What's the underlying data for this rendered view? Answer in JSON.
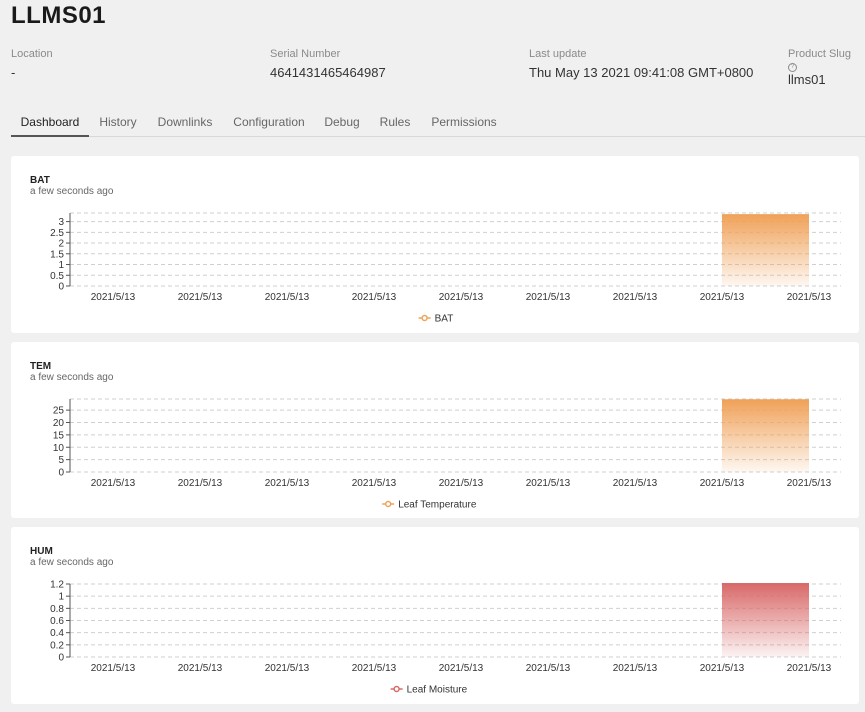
{
  "device": {
    "title": "LLMS01",
    "location_label": "Location",
    "location_value": "-",
    "serial_label": "Serial Number",
    "serial_value": "4641431465464987",
    "update_label": "Last update",
    "update_value": "Thu May 13 2021 09:41:08 GMT+0800",
    "slug_label": "Product Slug",
    "slug_help_icon": "?",
    "slug_value": "llms01"
  },
  "tabs": [
    {
      "label": "Dashboard",
      "active": true
    },
    {
      "label": "History",
      "active": false
    },
    {
      "label": "Downlinks",
      "active": false
    },
    {
      "label": "Configuration",
      "active": false
    },
    {
      "label": "Debug",
      "active": false
    },
    {
      "label": "Rules",
      "active": false
    },
    {
      "label": "Permissions",
      "active": false
    }
  ],
  "colors": {
    "orange": "#f0a25a",
    "red": "#d96a6a"
  },
  "chart_data": [
    {
      "type": "area",
      "title": "BAT",
      "subtitle": "a few seconds ago",
      "categories": [
        "2021/5/13",
        "2021/5/13",
        "2021/5/13",
        "2021/5/13",
        "2021/5/13",
        "2021/5/13",
        "2021/5/13",
        "2021/5/13",
        "2021/5/13"
      ],
      "series": [
        {
          "name": "BAT",
          "values": [
            null,
            null,
            null,
            null,
            null,
            null,
            null,
            3.3,
            3.3
          ],
          "color": "#f0a25a"
        }
      ],
      "yticks": [
        "0",
        "0.5",
        "1",
        "1.5",
        "2",
        "2.5",
        "3"
      ],
      "ylim": [
        0,
        3.4
      ],
      "grid": true,
      "legend": "bottom-center"
    },
    {
      "type": "area",
      "title": "TEM",
      "subtitle": "a few seconds ago",
      "categories": [
        "2021/5/13",
        "2021/5/13",
        "2021/5/13",
        "2021/5/13",
        "2021/5/13",
        "2021/5/13",
        "2021/5/13",
        "2021/5/13",
        "2021/5/13"
      ],
      "series": [
        {
          "name": "Leaf Temperature",
          "values": [
            null,
            null,
            null,
            null,
            null,
            null,
            null,
            29,
            29
          ],
          "color": "#f0a25a"
        }
      ],
      "yticks": [
        "0",
        "5",
        "10",
        "15",
        "20",
        "25"
      ],
      "ylim": [
        0,
        29.5
      ],
      "grid": true,
      "legend": "bottom-center"
    },
    {
      "type": "area",
      "title": "HUM",
      "subtitle": "a few seconds ago",
      "categories": [
        "2021/5/13",
        "2021/5/13",
        "2021/5/13",
        "2021/5/13",
        "2021/5/13",
        "2021/5/13",
        "2021/5/13",
        "2021/5/13",
        "2021/5/13"
      ],
      "series": [
        {
          "name": "Leaf Moisture",
          "values": [
            null,
            null,
            null,
            null,
            null,
            null,
            null,
            1.2,
            1.2
          ],
          "color": "#d96a6a"
        }
      ],
      "yticks": [
        "0",
        "0.2",
        "0.4",
        "0.6",
        "0.8",
        "1",
        "1.2"
      ],
      "ylim": [
        0,
        1.2
      ],
      "grid": true,
      "legend": "bottom-center"
    }
  ]
}
